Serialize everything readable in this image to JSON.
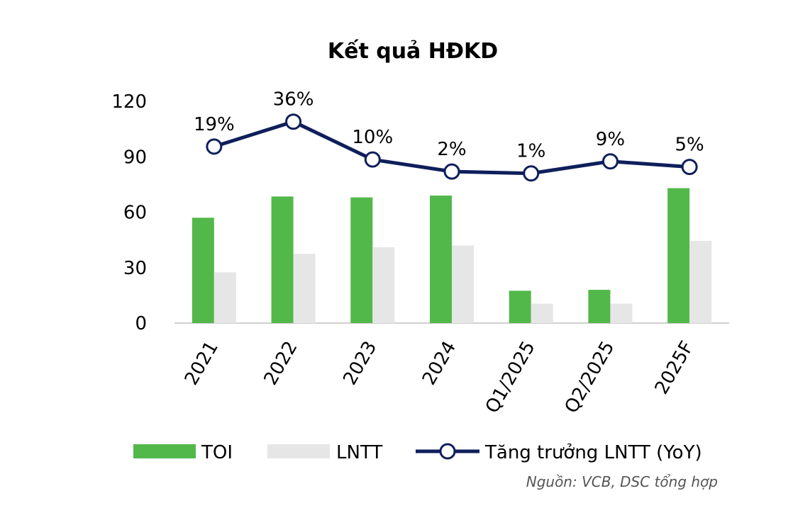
{
  "colors": {
    "toi": "#52B84A",
    "lntt": "#E6E6E6",
    "growth_line": "#0E1F5B",
    "axis_text": "#000000",
    "source_text": "#555555",
    "baseline": "#D0D0D0"
  },
  "chart_data": {
    "type": "bar",
    "title": "Kết quả HĐKD",
    "categories": [
      "2021",
      "2022",
      "2023",
      "2024",
      "Q1/2025",
      "Q2/2025",
      "2025F"
    ],
    "ylim": [
      0,
      120
    ],
    "yticks": [
      "0",
      "30",
      "60",
      "90",
      "120"
    ],
    "grid": false,
    "legend_position": "bottom",
    "series": [
      {
        "name": "TOI",
        "type": "bar",
        "values": [
          57,
          68.5,
          68,
          69,
          17.5,
          18,
          73
        ]
      },
      {
        "name": "LNTT",
        "type": "bar",
        "values": [
          27.5,
          37.5,
          41,
          42,
          10.5,
          10.5,
          44.5
        ]
      },
      {
        "name": "Tăng trưởng LNTT (YoY)",
        "type": "line",
        "plotted_values": [
          95.5,
          109,
          88.5,
          82,
          81,
          87.5,
          84.5
        ],
        "labels": [
          "19%",
          "36%",
          "10%",
          "2%",
          "1%",
          "9%",
          "5%"
        ]
      }
    ],
    "source": "Nguồn: VCB, DSC tổng hợp"
  }
}
